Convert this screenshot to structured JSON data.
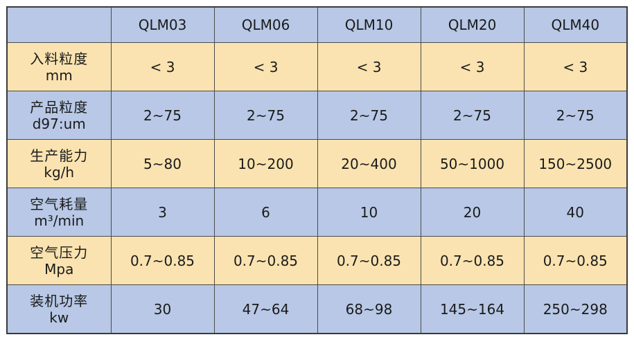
{
  "table": {
    "models": [
      "QLM03",
      "QLM06",
      "QLM10",
      "QLM20",
      "QLM40"
    ],
    "rows": [
      {
        "name": "入料粒度",
        "unit": "mm",
        "values": [
          "< 3",
          "< 3",
          "< 3",
          "< 3",
          "< 3"
        ]
      },
      {
        "name": "产品粒度",
        "unit": "d97:um",
        "values": [
          "2~75",
          "2~75",
          "2~75",
          "2~75",
          "2~75"
        ]
      },
      {
        "name": "生产能力",
        "unit": "kg/h",
        "values": [
          "5~80",
          "10~200",
          "20~400",
          "50~1000",
          "150~2500"
        ]
      },
      {
        "name": "空气耗量",
        "unit": "m³/min",
        "values": [
          "3",
          "6",
          "10",
          "20",
          "40"
        ]
      },
      {
        "name": "空气压力",
        "unit": "Mpa",
        "values": [
          "0.7~0.85",
          "0.7~0.85",
          "0.7~0.85",
          "0.7~0.85",
          "0.7~0.85"
        ]
      },
      {
        "name": "装机功率",
        "unit": "kw",
        "values": [
          "30",
          "47~64",
          "68~98",
          "145~164",
          "250~298"
        ]
      }
    ]
  },
  "colors": {
    "blue_row": "#b8c8e6",
    "yellow_row": "#fae3b0",
    "border": "#4a4a4a"
  }
}
